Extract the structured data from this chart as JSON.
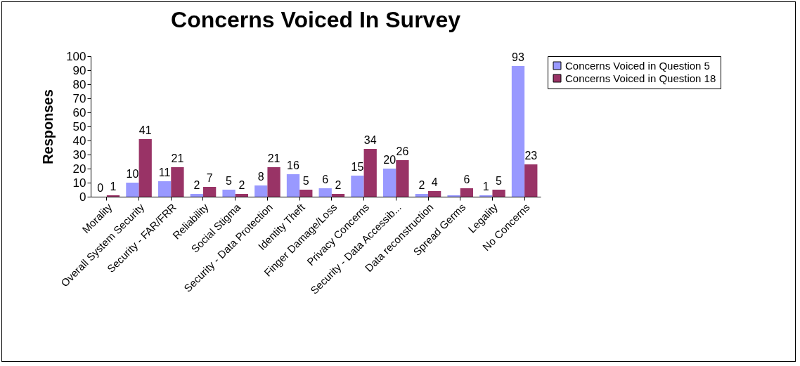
{
  "chart_data": {
    "type": "bar",
    "title": "Concerns Voiced In Survey",
    "ylabel": "Responses",
    "categories": [
      "Morality",
      "Overall System Security",
      "Security - FAR/FRR",
      "Reliability",
      "Social Stigma",
      "Security - Data Protection",
      "Identity Theft",
      "Finger Damage/Loss",
      "Privacy Concerns",
      "Security - Data Accessib...",
      "Data reconstruction",
      "Spread Germs",
      "Legality",
      "No Concerns"
    ],
    "series": [
      {
        "name": "Concerns Voiced in Question 5",
        "color": "#9999ff",
        "values": [
          0,
          10,
          11,
          2,
          5,
          8,
          16,
          6,
          15,
          20,
          2,
          1,
          1,
          93
        ],
        "value_labels": [
          "0",
          "10",
          "11",
          "2",
          "5",
          "8",
          "16",
          "6",
          "15",
          "20",
          "2",
          null,
          "1",
          "93"
        ]
      },
      {
        "name": "Concerns Voiced in Question 18",
        "color": "#993366",
        "values": [
          1,
          41,
          21,
          7,
          2,
          21,
          5,
          2,
          34,
          26,
          4,
          6,
          5,
          23
        ],
        "value_labels": [
          "1",
          "41",
          "21",
          "7",
          "2",
          "21",
          "5",
          "2",
          "34",
          "26",
          "4",
          "6",
          "5",
          "23"
        ]
      }
    ],
    "ylim": [
      0,
      100
    ],
    "yticks": [
      0,
      10,
      20,
      30,
      40,
      50,
      60,
      70,
      80,
      90,
      100
    ],
    "grid": false,
    "legend": "right"
  }
}
